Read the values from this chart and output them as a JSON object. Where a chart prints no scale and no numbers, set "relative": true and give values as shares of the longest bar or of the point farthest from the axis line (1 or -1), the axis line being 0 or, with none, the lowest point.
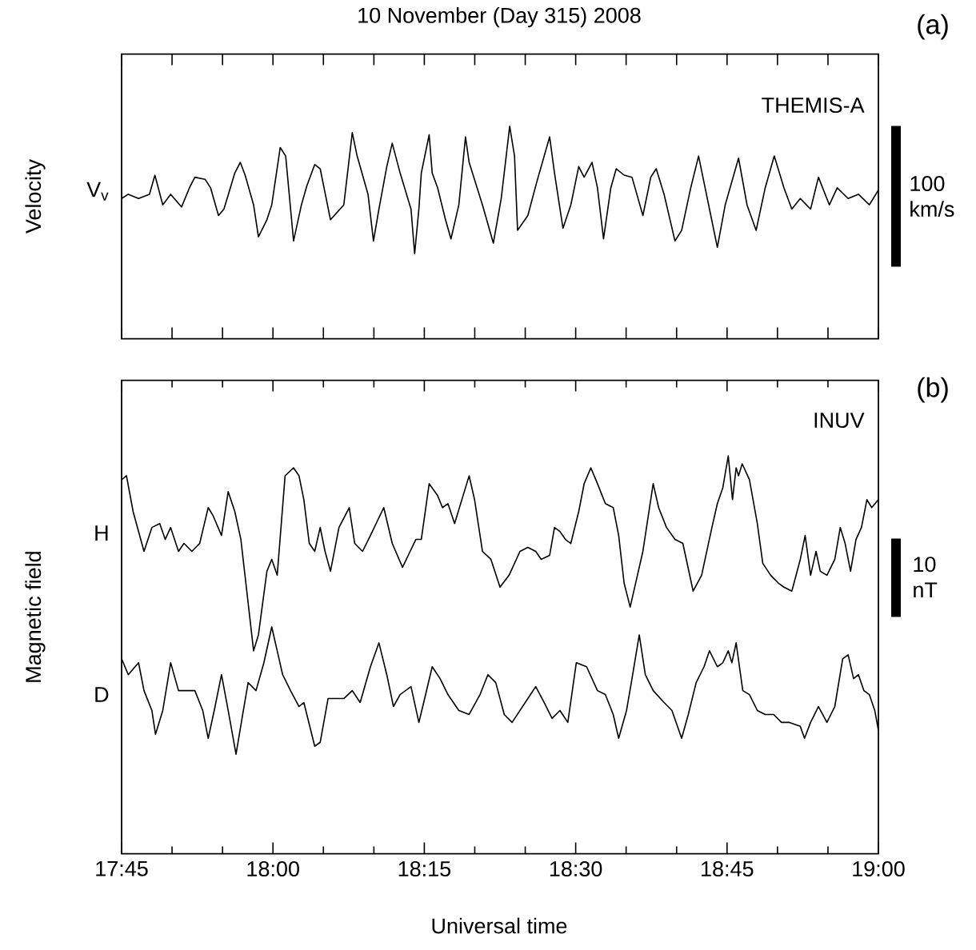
{
  "chart_data": [
    {
      "type": "line",
      "title": "10 November (Day 315) 2008",
      "ylabel": "Velocity",
      "relative": true,
      "tick_labels": false,
      "annotations": [
        "(a)",
        "THEMIS-A",
        "100 km/s"
      ],
      "xlim": [
        17.75,
        19.0
      ],
      "xticks": [
        {
          "value": 17.75,
          "label": null
        },
        {
          "value": 17.8333,
          "label": null
        },
        {
          "value": 17.9167,
          "label": null
        },
        {
          "value": 18.0,
          "label": null
        },
        {
          "value": 18.0833,
          "label": null
        },
        {
          "value": 18.1667,
          "label": null
        },
        {
          "value": 18.25,
          "label": null
        },
        {
          "value": 18.3333,
          "label": null
        },
        {
          "value": 18.4167,
          "label": null
        },
        {
          "value": 18.5,
          "label": null
        },
        {
          "value": 18.5833,
          "label": null
        },
        {
          "value": 18.6667,
          "label": null
        },
        {
          "value": 18.75,
          "label": null
        },
        {
          "value": 18.8333,
          "label": null
        },
        {
          "value": 18.9167,
          "label": null
        },
        {
          "value": 19.0,
          "label": null
        }
      ],
      "series": [
        {
          "name": "V$_{v}$",
          "color": "#000000",
          "x": [
            17.75,
            17.761,
            17.778,
            17.796,
            17.805,
            17.818,
            17.831,
            17.849,
            17.862,
            17.871,
            17.888,
            17.897,
            17.91,
            17.919,
            17.937,
            17.946,
            17.954,
            17.968,
            17.976,
            17.99,
            17.998,
            18.012,
            18.021,
            18.034,
            18.047,
            18.056,
            18.069,
            18.078,
            18.095,
            18.117,
            18.131,
            18.139,
            18.157,
            18.166,
            18.175,
            18.188,
            18.197,
            18.21,
            18.228,
            18.234,
            18.241,
            18.245,
            18.258,
            18.263,
            18.272,
            18.285,
            18.294,
            18.307,
            18.318,
            18.324,
            18.346,
            18.364,
            18.377,
            18.391,
            18.399,
            18.404,
            18.421,
            18.435,
            18.448,
            18.457,
            18.465,
            18.479,
            18.492,
            18.505,
            18.514,
            18.527,
            18.536,
            18.546,
            18.558,
            18.567,
            18.58,
            18.593,
            18.611,
            18.624,
            18.633,
            18.646,
            18.664,
            18.675,
            18.69,
            18.703,
            18.721,
            18.734,
            18.747,
            18.769,
            18.783,
            18.798,
            18.813,
            18.828,
            18.844,
            18.857,
            18.871,
            18.888,
            18.901,
            18.919,
            18.932,
            18.95,
            18.967,
            18.985,
            19.0
          ],
          "values": [
            0.66,
            0.68,
            0.66,
            0.68,
            0.77,
            0.63,
            0.68,
            0.62,
            0.71,
            0.76,
            0.75,
            0.71,
            0.58,
            0.61,
            0.78,
            0.83,
            0.77,
            0.63,
            0.48,
            0.56,
            0.63,
            0.9,
            0.86,
            0.46,
            0.63,
            0.72,
            0.82,
            0.8,
            0.56,
            0.63,
            0.97,
            0.86,
            0.68,
            0.46,
            0.61,
            0.81,
            0.92,
            0.78,
            0.61,
            0.4,
            0.61,
            0.78,
            0.96,
            0.78,
            0.71,
            0.56,
            0.47,
            0.63,
            0.95,
            0.83,
            0.63,
            0.45,
            0.66,
            1.0,
            0.86,
            0.51,
            0.58,
            0.73,
            0.86,
            0.95,
            0.78,
            0.52,
            0.63,
            0.81,
            0.76,
            0.83,
            0.71,
            0.47,
            0.71,
            0.8,
            0.77,
            0.76,
            0.58,
            0.76,
            0.8,
            0.68,
            0.46,
            0.51,
            0.71,
            0.86,
            0.61,
            0.43,
            0.63,
            0.85,
            0.63,
            0.51,
            0.71,
            0.86,
            0.71,
            0.61,
            0.66,
            0.61,
            0.76,
            0.63,
            0.71,
            0.66,
            0.68,
            0.63,
            0.7
          ]
        }
      ]
    },
    {
      "type": "line",
      "xlabel": "Universal time",
      "ylabel": "Magnetic field",
      "relative": true,
      "tick_labels": "x",
      "annotations": [
        "(b)",
        "INUV",
        "10 nT"
      ],
      "xlim": [
        17.75,
        19.0
      ],
      "xticks": [
        {
          "value": 17.75,
          "label": "17:45"
        },
        {
          "value": 17.8333,
          "label": null
        },
        {
          "value": 17.9167,
          "label": null
        },
        {
          "value": 18.0,
          "label": "18:00"
        },
        {
          "value": 18.0833,
          "label": null
        },
        {
          "value": 18.1667,
          "label": null
        },
        {
          "value": 18.25,
          "label": "18:15"
        },
        {
          "value": 18.3333,
          "label": null
        },
        {
          "value": 18.4167,
          "label": null
        },
        {
          "value": 18.5,
          "label": "18:30"
        },
        {
          "value": 18.5833,
          "label": null
        },
        {
          "value": 18.6667,
          "label": null
        },
        {
          "value": 18.75,
          "label": "18:45"
        },
        {
          "value": 18.8333,
          "label": null
        },
        {
          "value": 18.9167,
          "label": null
        },
        {
          "value": 19.0,
          "label": "19:00"
        }
      ],
      "series": [
        {
          "name": "H",
          "color": "#000000",
          "x": [
            17.75,
            17.758,
            17.769,
            17.787,
            17.8,
            17.813,
            17.822,
            17.831,
            17.844,
            17.853,
            17.866,
            17.879,
            17.893,
            17.901,
            17.915,
            17.926,
            17.937,
            17.947,
            17.959,
            17.968,
            17.976,
            17.99,
            17.998,
            18.007,
            18.02,
            18.034,
            18.043,
            18.051,
            18.06,
            18.069,
            18.078,
            18.086,
            18.095,
            18.109,
            18.126,
            18.135,
            18.148,
            18.161,
            18.183,
            18.197,
            18.214,
            18.236,
            18.245,
            18.258,
            18.272,
            18.28,
            18.289,
            18.3,
            18.316,
            18.324,
            18.333,
            18.346,
            18.36,
            18.375,
            18.39,
            18.408,
            18.421,
            18.434,
            18.443,
            18.457,
            18.465,
            18.474,
            18.483,
            18.492,
            18.505,
            18.514,
            18.525,
            18.536,
            18.549,
            18.562,
            18.571,
            18.58,
            18.59,
            18.602,
            18.611,
            18.628,
            18.637,
            18.65,
            18.664,
            18.677,
            18.694,
            18.708,
            18.725,
            18.734,
            18.743,
            18.752,
            18.759,
            18.765,
            18.769,
            18.775,
            18.787,
            18.8,
            18.809,
            18.822,
            18.835,
            18.844,
            18.857,
            18.871,
            18.879,
            18.888,
            18.897,
            18.904,
            18.915,
            18.928,
            18.937,
            18.945,
            18.954,
            18.963,
            18.972,
            18.981,
            18.989,
            19.0
          ],
          "values": [
            0.94,
            0.95,
            0.86,
            0.76,
            0.82,
            0.83,
            0.79,
            0.82,
            0.76,
            0.78,
            0.76,
            0.78,
            0.87,
            0.85,
            0.8,
            0.91,
            0.86,
            0.79,
            0.63,
            0.51,
            0.55,
            0.71,
            0.74,
            0.7,
            0.95,
            0.97,
            0.95,
            0.89,
            0.78,
            0.76,
            0.82,
            0.76,
            0.71,
            0.82,
            0.87,
            0.78,
            0.76,
            0.8,
            0.87,
            0.78,
            0.72,
            0.79,
            0.79,
            0.93,
            0.9,
            0.87,
            0.88,
            0.83,
            0.91,
            0.95,
            0.89,
            0.76,
            0.74,
            0.67,
            0.7,
            0.76,
            0.77,
            0.76,
            0.74,
            0.75,
            0.82,
            0.81,
            0.79,
            0.78,
            0.86,
            0.93,
            0.97,
            0.93,
            0.88,
            0.87,
            0.8,
            0.68,
            0.62,
            0.7,
            0.76,
            0.93,
            0.87,
            0.82,
            0.79,
            0.78,
            0.66,
            0.7,
            0.82,
            0.88,
            0.92,
            1.0,
            0.89,
            0.97,
            0.95,
            0.98,
            0.94,
            0.83,
            0.73,
            0.7,
            0.68,
            0.67,
            0.66,
            0.74,
            0.8,
            0.7,
            0.76,
            0.71,
            0.7,
            0.74,
            0.82,
            0.78,
            0.71,
            0.79,
            0.82,
            0.89,
            0.87,
            0.89
          ]
        },
        {
          "name": "D",
          "color": "#000000",
          "x": [
            17.75,
            17.761,
            17.778,
            17.787,
            17.8,
            17.806,
            17.818,
            17.831,
            17.844,
            17.857,
            17.871,
            17.884,
            17.893,
            17.903,
            17.915,
            17.926,
            17.939,
            17.95,
            17.959,
            17.972,
            17.985,
            17.998,
            18.007,
            18.016,
            18.029,
            18.043,
            18.051,
            18.069,
            18.078,
            18.091,
            18.104,
            18.117,
            18.131,
            18.144,
            18.161,
            18.175,
            18.188,
            18.199,
            18.21,
            18.228,
            18.241,
            18.249,
            18.263,
            18.276,
            18.289,
            18.307,
            18.324,
            18.342,
            18.355,
            18.368,
            18.382,
            18.395,
            18.421,
            18.434,
            18.448,
            18.461,
            18.474,
            18.487,
            18.501,
            18.518,
            18.536,
            18.549,
            18.562,
            18.571,
            18.584,
            18.593,
            18.605,
            18.615,
            18.628,
            18.646,
            18.659,
            18.675,
            18.686,
            18.699,
            18.712,
            18.721,
            18.734,
            18.743,
            18.752,
            18.758,
            18.765,
            18.776,
            18.787,
            18.8,
            18.813,
            18.827,
            18.84,
            18.853,
            18.871,
            18.878,
            18.888,
            18.901,
            18.915,
            18.928,
            18.941,
            18.95,
            18.959,
            18.967,
            18.976,
            18.985,
            18.994,
            19.0
          ],
          "values": [
            0.49,
            0.45,
            0.48,
            0.41,
            0.36,
            0.3,
            0.36,
            0.48,
            0.41,
            0.41,
            0.41,
            0.36,
            0.29,
            0.36,
            0.45,
            0.36,
            0.25,
            0.35,
            0.43,
            0.41,
            0.48,
            0.57,
            0.51,
            0.45,
            0.41,
            0.37,
            0.38,
            0.27,
            0.28,
            0.39,
            0.39,
            0.39,
            0.41,
            0.38,
            0.47,
            0.53,
            0.45,
            0.37,
            0.4,
            0.42,
            0.33,
            0.38,
            0.47,
            0.44,
            0.4,
            0.36,
            0.35,
            0.4,
            0.45,
            0.43,
            0.35,
            0.33,
            0.39,
            0.42,
            0.38,
            0.34,
            0.36,
            0.33,
            0.48,
            0.47,
            0.41,
            0.4,
            0.35,
            0.29,
            0.36,
            0.44,
            0.55,
            0.45,
            0.41,
            0.38,
            0.36,
            0.29,
            0.35,
            0.43,
            0.47,
            0.51,
            0.47,
            0.48,
            0.51,
            0.48,
            0.53,
            0.41,
            0.4,
            0.36,
            0.35,
            0.35,
            0.33,
            0.33,
            0.32,
            0.29,
            0.33,
            0.37,
            0.33,
            0.37,
            0.49,
            0.5,
            0.44,
            0.45,
            0.41,
            0.4,
            0.36,
            0.31
          ]
        }
      ]
    }
  ]
}
